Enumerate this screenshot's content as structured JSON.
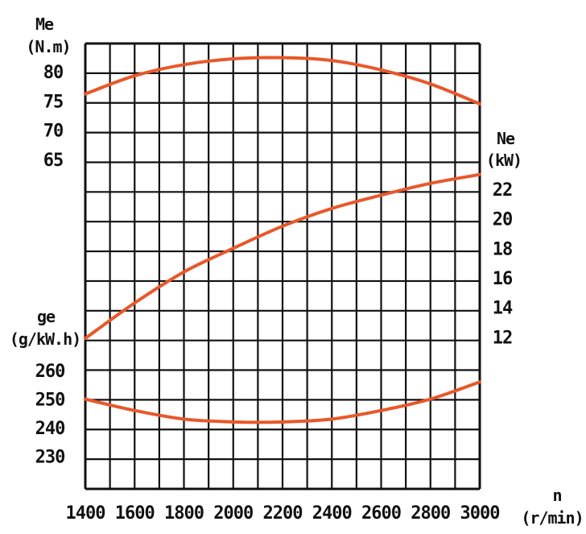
{
  "colors": {
    "grid": "#111111",
    "curve": "#e8582a",
    "background": "#ffffff"
  },
  "chart_data": {
    "type": "line",
    "grid": true,
    "x": {
      "label": "n",
      "unit": "(r/min)",
      "range": [
        1400,
        3000
      ],
      "ticks": [
        "1400",
        "1600",
        "1800",
        "2000",
        "2200",
        "2400",
        "2600",
        "2800",
        "3000"
      ]
    },
    "axes": {
      "me": {
        "label": "Me",
        "unit": "(N.m)",
        "ticks": [
          "80",
          "75",
          "70",
          "65"
        ],
        "values": [
          80,
          75,
          70,
          65
        ]
      },
      "ne": {
        "label": "Ne",
        "unit": "(kW)",
        "ticks": [
          "22",
          "20",
          "18",
          "16",
          "14",
          "12"
        ],
        "values": [
          22,
          20,
          18,
          16,
          14,
          12
        ]
      },
      "ge": {
        "label": "ge",
        "unit": "(g/kW.h)",
        "ticks": [
          "260",
          "250",
          "240",
          "230"
        ],
        "values": [
          260,
          250,
          240,
          230
        ]
      }
    },
    "series": [
      {
        "axis": "me",
        "x": [
          1400,
          1600,
          1800,
          2000,
          2200,
          2400,
          2600,
          2800,
          3000
        ],
        "y": [
          76.2,
          79.3,
          81.2,
          82.2,
          82.4,
          81.9,
          80.3,
          77.9,
          74.5
        ]
      },
      {
        "axis": "ne",
        "x": [
          1400,
          1600,
          1800,
          2000,
          2200,
          2400,
          2600,
          2800,
          3000
        ],
        "y": [
          11.9,
          14.3,
          16.4,
          18.0,
          19.5,
          20.7,
          21.6,
          22.4,
          23.0
        ]
      },
      {
        "axis": "ge",
        "x": [
          1400,
          1600,
          1800,
          2000,
          2200,
          2400,
          2600,
          2800,
          3000
        ],
        "y": [
          250,
          246,
          243,
          242,
          242,
          243,
          246,
          250,
          256
        ]
      }
    ]
  }
}
